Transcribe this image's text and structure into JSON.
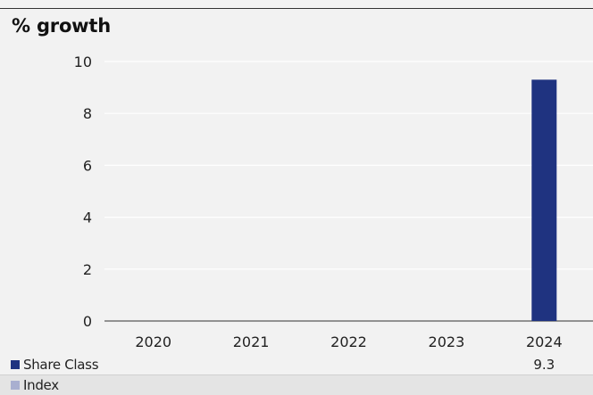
{
  "chart_data": {
    "type": "bar",
    "title": "% growth",
    "categories": [
      "2020",
      "2021",
      "2022",
      "2023",
      "2024"
    ],
    "series": [
      {
        "name": "Share Class",
        "values": [
          null,
          null,
          null,
          null,
          9.3
        ],
        "color": "#1f3380",
        "labels": [
          "",
          "",
          "",
          "",
          "9.3"
        ]
      },
      {
        "name": "Index",
        "values": [
          null,
          null,
          null,
          null,
          null
        ],
        "color": "#a9afd0",
        "labels": [
          "",
          "",
          "",
          "",
          ""
        ]
      }
    ],
    "yticks": [
      "0",
      "2",
      "4",
      "6",
      "8",
      "10"
    ],
    "ylim": [
      0,
      10
    ],
    "grid": true,
    "legend": "bottom-table"
  }
}
